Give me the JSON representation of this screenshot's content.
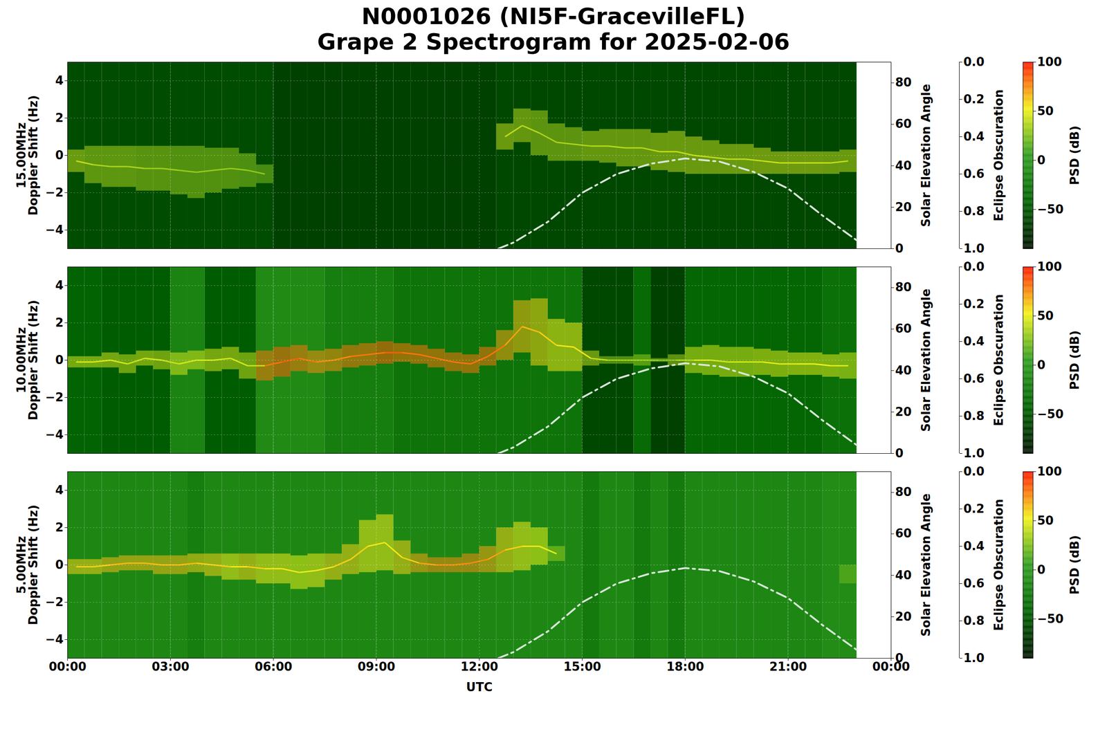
{
  "chart_data": {
    "type": "spectrogram",
    "title": "N0001026 (NI5F-GracevilleFL)",
    "subtitle": "Grape 2 Spectrogram for 2025-02-06",
    "xlabel": "UTC",
    "xlim": [
      0,
      24
    ],
    "xticks": [
      {
        "value": 0,
        "label": "00:00"
      },
      {
        "value": 3,
        "label": "03:00"
      },
      {
        "value": 6,
        "label": "06:00"
      },
      {
        "value": 9,
        "label": "09:00"
      },
      {
        "value": 12,
        "label": "12:00"
      },
      {
        "value": 15,
        "label": "15:00"
      },
      {
        "value": 18,
        "label": "18:00"
      },
      {
        "value": 21,
        "label": "21:00"
      },
      {
        "value": 24,
        "label": "00:00"
      }
    ],
    "grid": true,
    "y2label": "Solar Elevation Angle",
    "y2lim": [
      0,
      90
    ],
    "y2ticks": [
      0,
      20,
      40,
      60,
      80
    ],
    "solar_elevation": {
      "color": "#d8e6d8",
      "line_style": "dashdot",
      "x": [
        12.55,
        13,
        14,
        15,
        16,
        17,
        18,
        19,
        20,
        21,
        22,
        23
      ],
      "values": [
        0,
        3,
        13,
        27,
        36,
        41,
        43.5,
        42,
        37,
        29,
        16,
        4
      ]
    },
    "eclipse_obscuration": {
      "label": "Eclipse Obscuration",
      "lim": [
        1,
        0
      ],
      "ticks": [
        {
          "value": 0,
          "label": "0.0"
        },
        {
          "value": 0.2,
          "label": "0.2"
        },
        {
          "value": 0.4,
          "label": "0.4"
        },
        {
          "value": 0.6,
          "label": "0.6"
        },
        {
          "value": 0.8,
          "label": "0.8"
        },
        {
          "value": 1,
          "label": "1.0"
        }
      ]
    },
    "colorbar": {
      "label": "PSD (dB)",
      "lim": [
        -90,
        100
      ],
      "ticks": [
        -50,
        0,
        50,
        100
      ]
    },
    "bins": [
      0,
      0.5,
      1,
      1.5,
      2,
      2.5,
      3,
      3.5,
      4,
      4.5,
      5,
      5.5,
      6,
      6.5,
      7,
      7.5,
      8,
      8.5,
      9,
      9.5,
      10,
      10.5,
      11,
      11.5,
      12,
      12.5,
      13,
      13.5,
      14,
      14.5,
      15,
      15.5,
      16,
      16.5,
      17,
      17.5,
      18,
      18.5,
      19,
      19.5,
      20,
      20.5,
      21,
      21.5,
      22,
      22.5,
      23
    ],
    "panels": [
      {
        "ylabel": [
          "15.00MHz",
          "Doppler Shift (Hz)"
        ],
        "ylim": [
          -5,
          5
        ],
        "yticks": [
          -4,
          -2,
          0,
          2,
          4
        ],
        "tick_labels": "y",
        "background_psd": [
          -55,
          -55,
          -55,
          -55,
          -55,
          -55,
          -55,
          -55,
          -55,
          -55,
          -55,
          -55,
          -62,
          -62,
          -62,
          -62,
          -62,
          -62,
          -62,
          -62,
          -62,
          -62,
          -62,
          -62,
          -62,
          -58,
          -58,
          -58,
          -58,
          -58,
          -58,
          -58,
          -58,
          -58,
          -58,
          -58,
          -58,
          -58,
          -58,
          -58,
          -58,
          -58,
          -58,
          -58,
          -58,
          -58
        ],
        "trace_center": [
          -0.3,
          -0.5,
          -0.6,
          -0.6,
          -0.7,
          -0.7,
          -0.8,
          -0.9,
          -0.8,
          -0.7,
          -0.8,
          -1.0,
          null,
          null,
          null,
          null,
          null,
          null,
          null,
          null,
          null,
          null,
          null,
          null,
          null,
          1.0,
          1.6,
          1.2,
          0.7,
          0.6,
          0.5,
          0.5,
          0.4,
          0.4,
          0.2,
          0.2,
          0.0,
          -0.1,
          -0.2,
          -0.2,
          -0.3,
          -0.4,
          -0.4,
          -0.4,
          -0.4,
          -0.3
        ],
        "trace_spread": [
          0.6,
          1.0,
          1.1,
          1.1,
          1.2,
          1.2,
          1.3,
          1.4,
          1.2,
          1.1,
          0.9,
          0.5,
          null,
          null,
          null,
          null,
          null,
          null,
          null,
          null,
          null,
          null,
          null,
          null,
          null,
          0.7,
          0.9,
          1.2,
          1.0,
          0.9,
          0.8,
          0.9,
          1.0,
          1.0,
          1.0,
          1.1,
          1.0,
          0.9,
          0.8,
          0.8,
          0.7,
          0.6,
          0.6,
          0.6,
          0.6,
          0.6
        ],
        "trace_psd": [
          40,
          35,
          35,
          35,
          32,
          32,
          30,
          30,
          30,
          30,
          28,
          25,
          null,
          null,
          null,
          null,
          null,
          null,
          null,
          null,
          null,
          null,
          null,
          null,
          null,
          40,
          38,
          35,
          35,
          35,
          38,
          38,
          38,
          38,
          40,
          40,
          40,
          40,
          40,
          40,
          42,
          42,
          42,
          42,
          40,
          40
        ]
      },
      {
        "ylabel": [
          "10.00MHz",
          "Doppler Shift (Hz)"
        ],
        "ylim": [
          -5,
          5
        ],
        "yticks": [
          -4,
          -2,
          0,
          2,
          4
        ],
        "tick_labels": "y",
        "background_psd": [
          -40,
          -40,
          -45,
          -45,
          -45,
          -45,
          -15,
          -15,
          -45,
          -45,
          -45,
          -10,
          -10,
          -10,
          -10,
          -20,
          -20,
          -20,
          -20,
          -28,
          -28,
          -28,
          -28,
          -28,
          -28,
          -28,
          -28,
          -28,
          -28,
          -28,
          -58,
          -58,
          -58,
          -35,
          -62,
          -62,
          -38,
          -38,
          -38,
          -38,
          -38,
          -38,
          -38,
          -38,
          -30,
          -30
        ],
        "trace_center": [
          -0.1,
          -0.1,
          0.0,
          -0.2,
          0.1,
          0.0,
          -0.2,
          0.0,
          0.0,
          0.1,
          -0.3,
          -0.3,
          -0.1,
          0.1,
          -0.1,
          0.0,
          0.2,
          0.3,
          0.4,
          0.4,
          0.3,
          0.1,
          -0.1,
          -0.2,
          0.2,
          0.8,
          1.8,
          1.5,
          0.8,
          0.7,
          0.1,
          0.0,
          0.0,
          0.0,
          0.0,
          0.0,
          0.0,
          0.0,
          -0.1,
          -0.1,
          -0.1,
          -0.2,
          -0.2,
          -0.2,
          -0.3,
          -0.3
        ],
        "trace_spread": [
          0.3,
          0.3,
          0.4,
          0.5,
          0.4,
          0.5,
          0.6,
          0.5,
          0.6,
          0.6,
          0.7,
          0.8,
          0.8,
          0.7,
          0.6,
          0.6,
          0.6,
          0.6,
          0.6,
          0.5,
          0.5,
          0.5,
          0.5,
          0.5,
          0.5,
          0.8,
          1.4,
          1.8,
          1.4,
          1.3,
          0.4,
          0.2,
          0.2,
          0.3,
          0.1,
          0.3,
          0.7,
          0.8,
          0.8,
          0.8,
          0.7,
          0.7,
          0.6,
          0.6,
          0.6,
          0.7
        ],
        "trace_psd": [
          45,
          45,
          45,
          42,
          45,
          42,
          45,
          45,
          45,
          45,
          42,
          80,
          85,
          80,
          75,
          75,
          80,
          80,
          85,
          80,
          80,
          80,
          80,
          80,
          80,
          70,
          65,
          60,
          55,
          55,
          40,
          30,
          30,
          30,
          25,
          35,
          45,
          45,
          45,
          45,
          48,
          48,
          50,
          50,
          48,
          45
        ]
      },
      {
        "ylabel": [
          "5.00MHz",
          "Doppler Shift (Hz)"
        ],
        "ylim": [
          -5,
          5
        ],
        "yticks": [
          -4,
          -2,
          0,
          2,
          4
        ],
        "background_psd": [
          -12,
          -12,
          -12,
          -12,
          -12,
          -12,
          -12,
          -20,
          -12,
          -12,
          -12,
          -12,
          -12,
          -12,
          -12,
          -12,
          -12,
          -12,
          -12,
          -12,
          -12,
          -12,
          -12,
          -12,
          -12,
          -12,
          -12,
          -12,
          -12,
          -12,
          -22,
          -12,
          -12,
          -22,
          -12,
          -22,
          -12,
          -12,
          -12,
          -12,
          -12,
          -12,
          -12,
          -12,
          -8,
          -8
        ],
        "trace_center": [
          -0.1,
          -0.1,
          0.0,
          0.1,
          0.1,
          0.0,
          0.0,
          0.1,
          0.0,
          -0.1,
          -0.1,
          -0.2,
          -0.2,
          -0.4,
          -0.3,
          -0.1,
          0.3,
          1.0,
          1.2,
          0.4,
          0.1,
          0.0,
          0.0,
          0.1,
          0.3,
          0.8,
          1.0,
          1.0,
          0.6,
          null,
          null,
          null,
          null,
          null,
          null,
          null,
          null,
          null,
          null,
          null,
          null,
          null,
          null,
          null,
          null,
          -0.5
        ],
        "trace_spread": [
          0.4,
          0.4,
          0.4,
          0.4,
          0.4,
          0.5,
          0.5,
          0.5,
          0.6,
          0.7,
          0.7,
          0.8,
          0.8,
          0.9,
          0.9,
          0.7,
          0.8,
          1.4,
          1.5,
          0.9,
          0.5,
          0.4,
          0.4,
          0.5,
          0.7,
          1.2,
          1.3,
          1.0,
          0.4,
          null,
          null,
          null,
          null,
          null,
          null,
          null,
          null,
          null,
          null,
          null,
          null,
          null,
          null,
          null,
          null,
          0.5
        ],
        "trace_psd": [
          60,
          60,
          65,
          65,
          65,
          65,
          65,
          60,
          60,
          55,
          60,
          55,
          55,
          50,
          55,
          60,
          60,
          55,
          55,
          60,
          70,
          75,
          75,
          75,
          70,
          60,
          55,
          50,
          30,
          null,
          null,
          null,
          null,
          null,
          null,
          null,
          null,
          null,
          null,
          null,
          null,
          null,
          null,
          null,
          null,
          20
        ]
      }
    ]
  }
}
